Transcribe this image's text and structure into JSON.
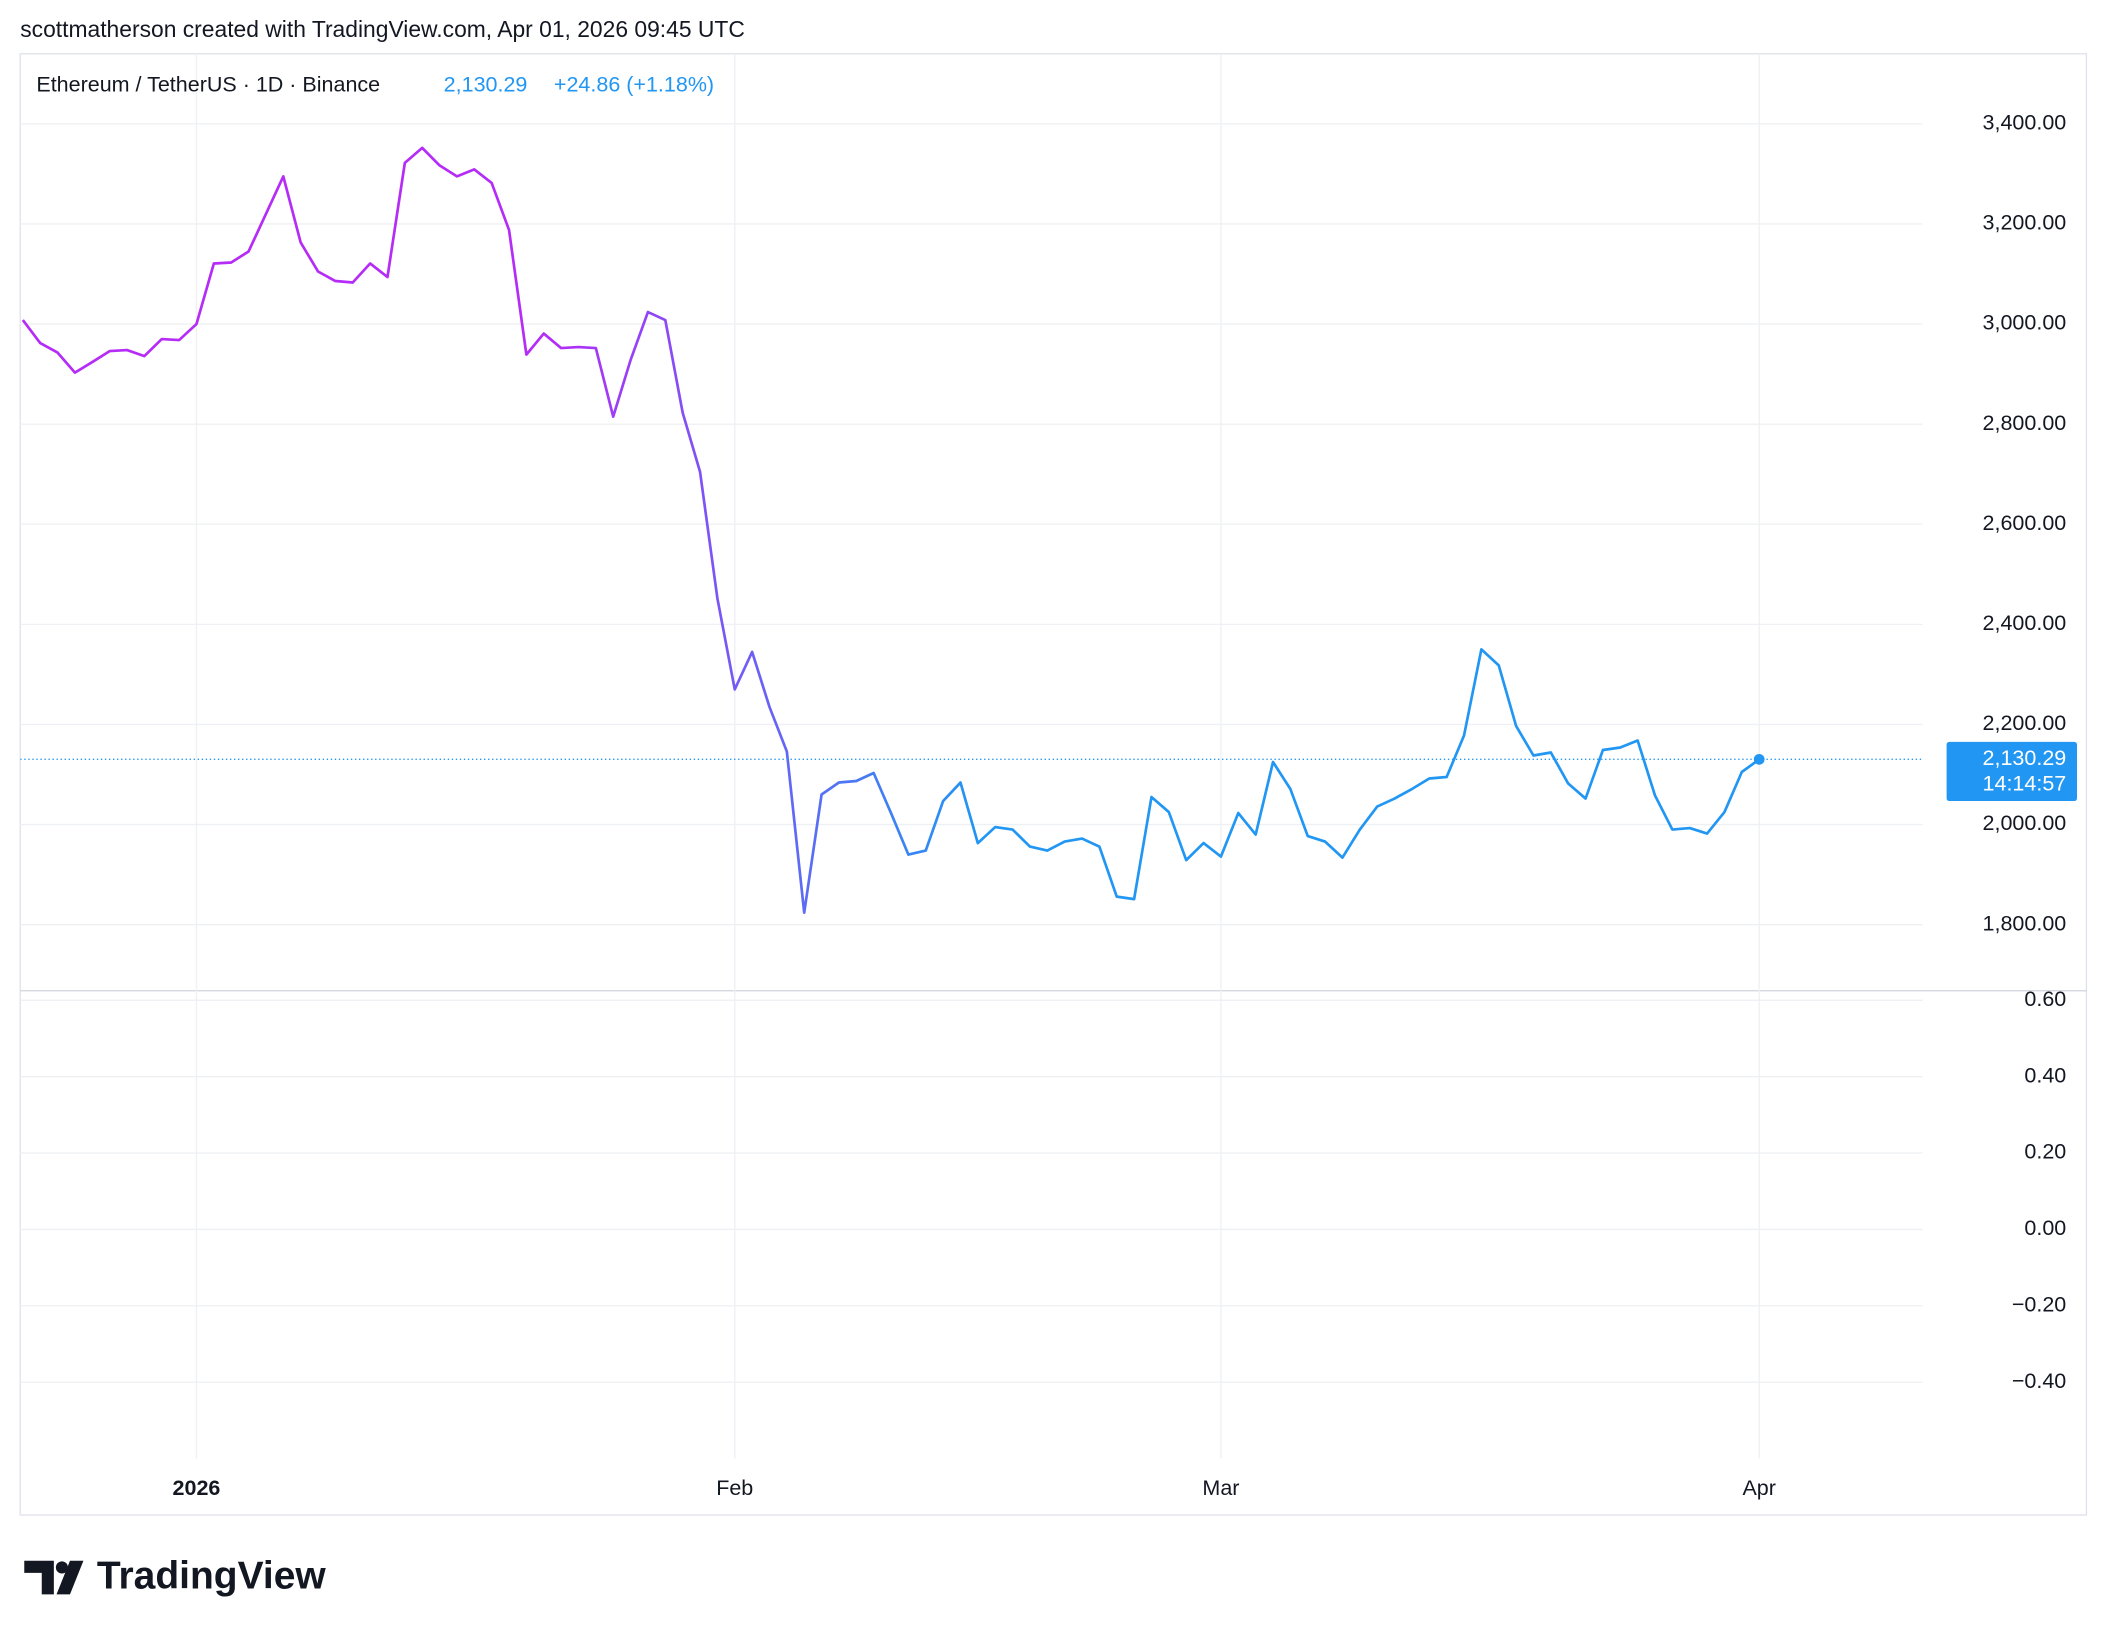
{
  "header": {
    "credit": "scottmatherson created with TradingView.com, Apr 01, 2026 09:45 UTC",
    "logo": "TradingView"
  },
  "chart_data": {
    "type": "line",
    "title": "Ethereum / TetherUS · 1D · Binance",
    "change": "+24.86 (+1.18%)",
    "last_price": {
      "value": 2130.29,
      "label": "2,130.29"
    },
    "countdown": "14:14:57",
    "color_gradient": [
      "#b52cf7",
      "#2196f3"
    ],
    "price_label_color": "#2196f3",
    "grid": true,
    "values": [
      3008,
      2962,
      2943,
      2903,
      2924,
      2946,
      2948,
      2936,
      2970,
      2968,
      3000,
      3121,
      3123,
      3145,
      3220,
      3295,
      3163,
      3105,
      3086,
      3083,
      3121,
      3094,
      3322,
      3352,
      3317,
      3295,
      3309,
      3282,
      3188,
      2939,
      2981,
      2952,
      2954,
      2952,
      2815,
      2928,
      3024,
      3008,
      2823,
      2705,
      2452,
      2270,
      2345,
      2235,
      2146,
      1824,
      2060,
      2084,
      2087,
      2103,
      2023,
      1940,
      1948,
      2047,
      2084,
      1963,
      1995,
      1990,
      1956,
      1948,
      1966,
      1972,
      1956,
      1856,
      1851,
      2055,
      2025,
      1929,
      1963,
      1936,
      2023,
      1980,
      2125,
      2071,
      1977,
      1966,
      1934,
      1990,
      2036,
      2052,
      2071,
      2092,
      2095,
      2178,
      2350,
      2318,
      2197,
      2138,
      2144,
      2082,
      2052,
      2149,
      2154,
      2168,
      2058,
      1990,
      1993,
      1982,
      2025,
      2105,
      2130.29
    ],
    "xlim": [
      -0.15,
      109.4
    ],
    "xticks": [
      {
        "value": 10,
        "label": "2026"
      },
      {
        "value": 41,
        "label": "Feb"
      },
      {
        "value": 69,
        "label": "Mar"
      },
      {
        "value": 100,
        "label": "Apr"
      }
    ],
    "ylim": [
      1668,
      3540
    ],
    "yticks": [
      {
        "value": 1800,
        "label": "1,800.00"
      },
      {
        "value": 2000,
        "label": "2,000.00"
      },
      {
        "value": 2200,
        "label": "2,200.00"
      },
      {
        "value": 2400,
        "label": "2,400.00"
      },
      {
        "value": 2600,
        "label": "2,600.00"
      },
      {
        "value": 2800,
        "label": "2,800.00"
      },
      {
        "value": 3000,
        "label": "3,000.00"
      },
      {
        "value": 3200,
        "label": "3,200.00"
      },
      {
        "value": 3400,
        "label": "3,400.00"
      }
    ],
    "lower_pane": {
      "ylim": [
        -0.6,
        0.625
      ],
      "yticks": [
        {
          "value": -0.4,
          "label": "−0.40"
        },
        {
          "value": -0.2,
          "label": "−0.20"
        },
        {
          "value": 0,
          "label": "0.00"
        },
        {
          "value": 0.2,
          "label": "0.20"
        },
        {
          "value": 0.4,
          "label": "0.40"
        },
        {
          "value": 0.6,
          "label": "0.60"
        }
      ]
    }
  }
}
